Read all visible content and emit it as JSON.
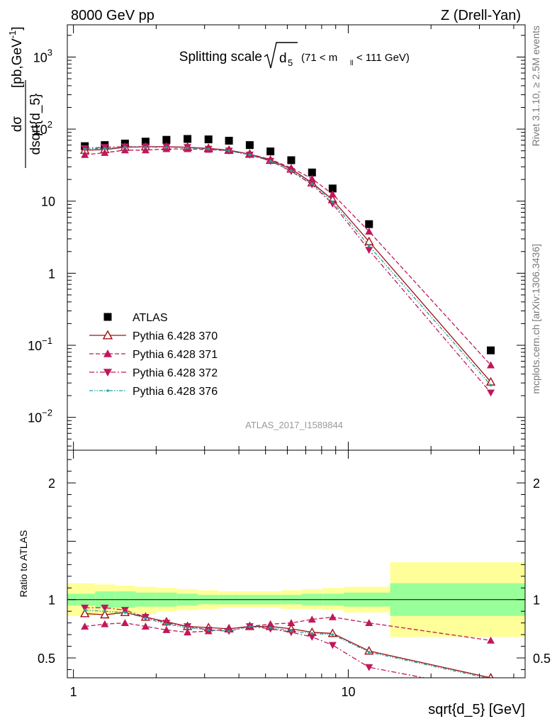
{
  "header": {
    "left": "8000 GeV pp",
    "right": "Z (Drell-Yan)"
  },
  "side_labels": {
    "rivet": "Rivet 3.1.10, ≥ 2.5M events",
    "mcplots": "mcplots.cern.ch [arXiv:1306.3436]"
  },
  "chart_data": {
    "type": "scatter",
    "title_main": "Splitting scale",
    "title_sym": "d",
    "title_sub": "5",
    "title_range_pre": "(71 < m",
    "title_range_sub": "ll",
    "title_range_post": " < 111 GeV)",
    "watermark": "ATLAS_2017_I1589844",
    "xlabel": "sqrt{d_5} [GeV]",
    "xscale": "log",
    "xlim": [
      0.95,
      44
    ],
    "x_ticks": [
      {
        "v": 1,
        "label": "1"
      },
      {
        "v": 10,
        "label": "10"
      }
    ],
    "ylabel_top": {
      "num": "dσ",
      "den": "dsqrt{d_5}",
      "units": "[pb,GeV",
      "units_exp": "-1",
      "units_end": "]"
    },
    "yscale": "log",
    "ylim": [
      0.0035,
      2800
    ],
    "y_ticks": [
      {
        "v": 0.01,
        "base": "10",
        "exp": "−2"
      },
      {
        "v": 0.1,
        "base": "10",
        "exp": "−1"
      },
      {
        "v": 1,
        "base": "1",
        "exp": ""
      },
      {
        "v": 10,
        "base": "10",
        "exp": ""
      },
      {
        "v": 100,
        "base": "10",
        "exp": "2"
      },
      {
        "v": 1000,
        "base": "10",
        "exp": "3"
      }
    ],
    "x": [
      1.1,
      1.3,
      1.54,
      1.83,
      2.18,
      2.6,
      3.1,
      3.68,
      4.38,
      5.21,
      6.2,
      7.38,
      8.77,
      11.9,
      33.0
    ],
    "ratio_ylabel": "Ratio to ATLAS",
    "ratio_ylim": [
      0.33,
      2.28
    ],
    "ratio_ticks": [
      {
        "v": 0.5,
        "label": "0.5"
      },
      {
        "v": 1,
        "label": "1"
      },
      {
        "v": 2,
        "label": "2"
      }
    ],
    "ratio_bands": {
      "edges": [
        0.95,
        1.2,
        1.42,
        1.68,
        2.0,
        2.38,
        2.84,
        3.38,
        4.03,
        4.79,
        5.7,
        6.78,
        8.07,
        9.62,
        14.2,
        44
      ],
      "stat_lo": [
        0.95,
        0.93,
        0.93,
        0.94,
        0.94,
        0.95,
        0.96,
        0.96,
        0.96,
        0.96,
        0.96,
        0.95,
        0.95,
        0.94,
        0.86
      ],
      "stat_hi": [
        1.05,
        1.07,
        1.07,
        1.06,
        1.06,
        1.05,
        1.04,
        1.04,
        1.04,
        1.04,
        1.04,
        1.05,
        1.05,
        1.06,
        1.14
      ],
      "tot_lo": [
        0.86,
        0.87,
        0.88,
        0.88,
        0.9,
        0.91,
        0.92,
        0.93,
        0.93,
        0.93,
        0.92,
        0.92,
        0.91,
        0.89,
        0.68
      ],
      "tot_hi": [
        1.14,
        1.13,
        1.12,
        1.11,
        1.1,
        1.09,
        1.08,
        1.07,
        1.07,
        1.07,
        1.08,
        1.09,
        1.1,
        1.11,
        1.32
      ],
      "stat_color": "#99ff99",
      "tot_color": "#ffff99"
    },
    "series": [
      {
        "name": "ATLAS",
        "style": "data",
        "color": "#000000",
        "marker": "square",
        "values": [
          58,
          60,
          63,
          67,
          71,
          73,
          72,
          69,
          60,
          49,
          37,
          25,
          15,
          4.8,
          0.085
        ]
      },
      {
        "name": "Pythia 6.428 370",
        "style": "solid",
        "color": "#a01010",
        "marker": "triangle-up-open",
        "values": [
          51,
          52,
          56,
          57,
          57,
          56,
          54,
          51,
          45,
          37,
          28,
          18,
          10.5,
          2.75,
          0.031
        ],
        "ratio": [
          0.88,
          0.87,
          0.89,
          0.85,
          0.81,
          0.77,
          0.76,
          0.75,
          0.77,
          0.77,
          0.75,
          0.72,
          0.71,
          0.56,
          0.33
        ]
      },
      {
        "name": "Pythia 6.428 371",
        "style": "dashed",
        "color": "#c0185a",
        "marker": "triangle-up",
        "values": [
          44,
          47,
          51,
          51,
          53,
          53,
          52,
          50,
          45,
          38,
          29,
          20.5,
          12.5,
          3.8,
          0.053
        ],
        "ratio": [
          0.77,
          0.79,
          0.8,
          0.77,
          0.74,
          0.72,
          0.73,
          0.75,
          0.77,
          0.79,
          0.8,
          0.83,
          0.85,
          0.8,
          0.65
        ]
      },
      {
        "name": "Pythia 6.428 372",
        "style": "dashdot",
        "color": "#c0185a",
        "marker": "triangle-down",
        "values": [
          54,
          56,
          57,
          57,
          57,
          56,
          53,
          50,
          44,
          36,
          26,
          17,
          9.2,
          2.1,
          0.022
        ],
        "ratio": [
          0.93,
          0.93,
          0.91,
          0.85,
          0.8,
          0.77,
          0.74,
          0.73,
          0.77,
          0.75,
          0.72,
          0.68,
          0.61,
          0.42,
          0.22
        ]
      },
      {
        "name": "Pythia 6.428 376",
        "style": "dashdotdot",
        "color": "#20a0a0",
        "marker": "dot",
        "values": [
          53,
          54,
          56,
          56,
          56,
          55,
          53,
          50,
          44,
          36,
          26.5,
          17.5,
          9.8,
          2.4,
          0.028
        ],
        "ratio": [
          0.91,
          0.9,
          0.89,
          0.84,
          0.79,
          0.76,
          0.74,
          0.73,
          0.77,
          0.76,
          0.73,
          0.71,
          0.7,
          0.55,
          0.32
        ]
      }
    ],
    "legend_position": "lower-left"
  }
}
